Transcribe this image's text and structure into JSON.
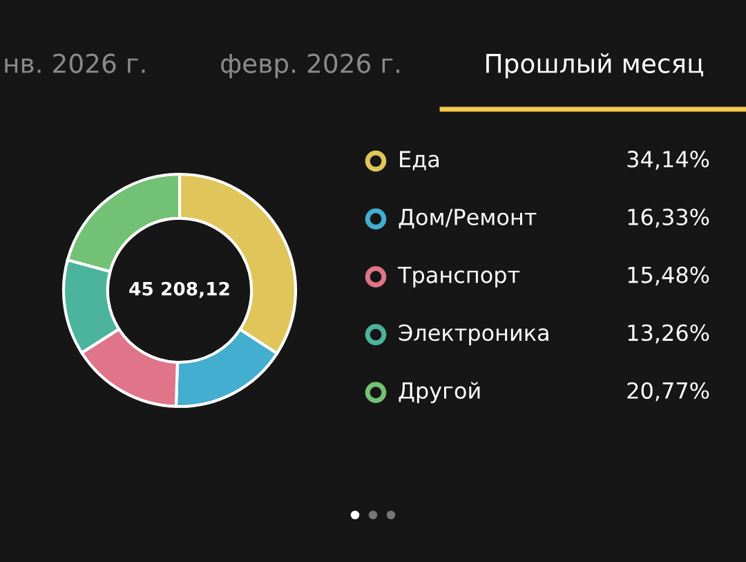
{
  "chart_data": {
    "type": "donut",
    "categories": [
      "Еда",
      "Дом/Ремонт",
      "Транспорт",
      "Электроника",
      "Другой"
    ],
    "values": [
      34.14,
      16.33,
      15.48,
      13.26,
      20.77
    ],
    "colors": [
      "#e0c55a",
      "#43aed0",
      "#e07489",
      "#4cb39d",
      "#72c174"
    ],
    "value_labels": [
      "34,14%",
      "16,33%",
      "15,48%",
      "13,26%",
      "20,77%"
    ],
    "annotations": [
      "нв. 2026 г.",
      "февр. 2026 г.",
      "Прошлый месяц",
      "45 208,12"
    ],
    "legend": "right"
  }
}
